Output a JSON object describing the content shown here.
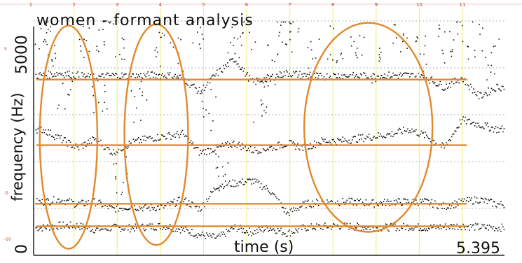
{
  "chart_data": {
    "type": "scatter",
    "title": "women - formant analysis",
    "xlabel": "time (s)",
    "ylabel": "frequency (Hz)",
    "ytick_top": "5000",
    "ytick_bottom": "0",
    "duration_label": "5.395",
    "ylim": [
      0,
      5000
    ],
    "xlim": [
      0,
      5.395
    ],
    "ruler_ticks": [
      "1",
      "2",
      "3",
      "4",
      "5",
      "6",
      "7",
      "8",
      "9",
      "10",
      "11"
    ],
    "right_ticks": [
      "5",
      "",
      "-5",
      "",
      "-10"
    ],
    "colors": {
      "points": "#111111",
      "highlight": "#e08a2c",
      "vertical_lines": "#f3ef8a",
      "grid": "#9a9a9a"
    },
    "formant_lines_hz": [
      3750,
      2350,
      1100,
      620
    ],
    "highlight_ellipses": [
      {
        "t_start": 0.07,
        "t_end": 0.73,
        "f_low": 140,
        "f_high": 4900
      },
      {
        "t_start": 1.04,
        "t_end": 1.77,
        "f_low": 220,
        "f_high": 4930
      },
      {
        "t_start": 3.1,
        "t_end": 4.57,
        "f_low": 500,
        "f_high": 4960
      }
    ],
    "series": [
      {
        "name": "F1",
        "x": [
          0.1,
          0.3,
          0.5,
          0.7,
          0.9,
          1.1,
          1.3,
          1.5,
          1.7,
          1.9,
          2.1,
          2.3,
          2.5,
          2.7,
          2.9,
          3.1,
          3.3,
          3.5,
          3.7,
          3.9,
          4.1,
          4.3,
          4.5,
          4.7,
          4.9,
          5.1,
          5.3
        ],
        "y": [
          600,
          650,
          640,
          560,
          600,
          590,
          620,
          640,
          560,
          450,
          380,
          600,
          500,
          600,
          480,
          600,
          620,
          640,
          620,
          600,
          610,
          620,
          600,
          620,
          640,
          610,
          600
        ]
      },
      {
        "name": "F2",
        "x": [
          0.1,
          0.3,
          0.5,
          0.7,
          0.9,
          1.1,
          1.3,
          1.5,
          1.7,
          1.9,
          2.1,
          2.3,
          2.5,
          2.7,
          2.9,
          3.1,
          3.3,
          3.5,
          3.7,
          3.9,
          4.1,
          4.3,
          4.5,
          4.7,
          4.9,
          5.1,
          5.3
        ],
        "y": [
          1150,
          1200,
          1100,
          1150,
          1000,
          1050,
          1020,
          1050,
          1200,
          1000,
          1500,
          1550,
          1600,
          1400,
          900,
          1100,
          1150,
          1150,
          1150,
          1120,
          1150,
          1150,
          1150,
          1050,
          1150,
          1200,
          1100
        ]
      },
      {
        "name": "F3",
        "x": [
          0.1,
          0.3,
          0.5,
          0.7,
          0.9,
          1.1,
          1.3,
          1.5,
          1.7,
          1.9,
          2.1,
          2.3,
          2.5,
          2.7,
          2.9,
          3.1,
          3.3,
          3.5,
          3.7,
          3.9,
          4.1,
          4.3,
          4.5,
          4.7,
          4.9,
          5.1,
          5.3
        ],
        "y": [
          2700,
          2500,
          2300,
          2500,
          2200,
          2400,
          2500,
          2550,
          2600,
          2200,
          2300,
          2400,
          2250,
          2300,
          2400,
          2300,
          2450,
          2450,
          2500,
          2550,
          2600,
          2700,
          2550,
          2300,
          2900,
          2800,
          2700
        ]
      },
      {
        "name": "F4",
        "x": [
          0.1,
          0.3,
          0.5,
          0.7,
          0.9,
          1.1,
          1.3,
          1.5,
          1.7,
          1.9,
          2.1,
          2.3,
          2.5,
          2.7,
          2.9,
          3.1,
          3.3,
          3.5,
          3.7,
          3.9,
          4.1,
          4.3,
          4.5,
          4.7,
          4.9,
          5.1,
          5.3
        ],
        "y": [
          3850,
          3900,
          3850,
          3800,
          3850,
          3830,
          3850,
          3860,
          3800,
          3500,
          3900,
          4200,
          3700,
          3800,
          3900,
          3850,
          3820,
          3850,
          3830,
          3840,
          3850,
          3850,
          3800,
          3600,
          3800,
          3400,
          3600
        ]
      },
      {
        "name": "scattered",
        "x": [
          0.1,
          0.2,
          0.35,
          0.55,
          0.75,
          0.8,
          0.95,
          1.0,
          1.2,
          1.45,
          1.65,
          1.85,
          2.0,
          2.15,
          2.3,
          2.45,
          2.6,
          2.75,
          2.85,
          2.95,
          3.2,
          3.45,
          3.7,
          3.95,
          4.2,
          4.45,
          4.7,
          4.85,
          5.05,
          5.25
        ],
        "y": [
          4700,
          4500,
          3400,
          4600,
          3200,
          4800,
          4600,
          1700,
          3300,
          4400,
          4200,
          4700,
          3100,
          1800,
          4500,
          4800,
          3200,
          4100,
          4950,
          4700,
          4200,
          4500,
          4300,
          4100,
          4600,
          4300,
          4500,
          4800,
          4600,
          4200
        ]
      }
    ]
  }
}
